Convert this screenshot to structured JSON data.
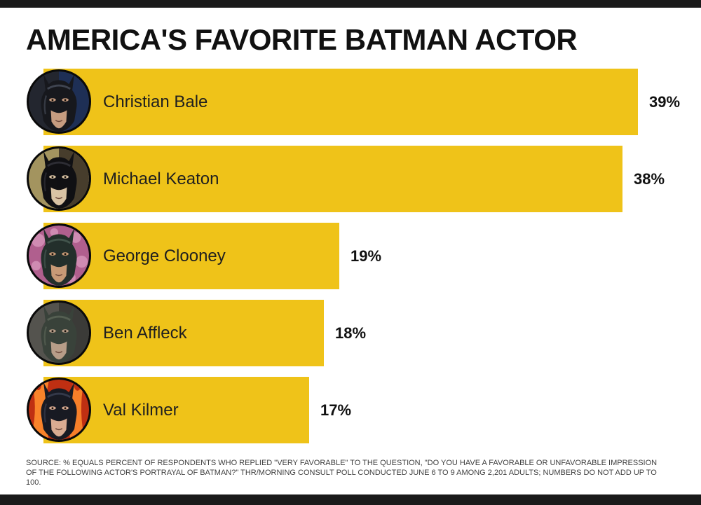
{
  "title": "AMERICA'S FAVORITE BATMAN ACTOR",
  "source_note": "SOURCE: % EQUALS PERCENT OF RESPONDENTS WHO REPLIED \"VERY FAVORABLE\" TO THE QUESTION, \"DO YOU HAVE A FAVORABLE OR UNFAVORABLE IMPRESSION OF THE FOLLOWING ACTOR'S PORTRAYAL OF BATMAN?\" THR/MORNING CONSULT POLL CONDUCTED JUNE 6 TO 9 AMONG 2,201 ADULTS; NUMBERS DO NOT ADD UP TO 100.",
  "colors": {
    "background": "#FFFFFF",
    "frame_bars": "#1A1A1A",
    "bar_fill": "#EFC319",
    "title_text": "#111111",
    "name_text": "#1F1F1F",
    "value_text": "#111111",
    "source_text": "#3F3F3F",
    "avatar_ring": "#0A0A0A"
  },
  "chart_data": {
    "type": "bar",
    "orientation": "horizontal",
    "title": "AMERICA'S FAVORITE BATMAN ACTOR",
    "unit": "%",
    "categories": [
      "Christian Bale",
      "Michael Keaton",
      "George Clooney",
      "Ben Affleck",
      "Val Kilmer"
    ],
    "values": [
      39,
      38,
      19,
      18,
      17
    ],
    "value_labels": [
      "39%",
      "38%",
      "19%",
      "18%",
      "17%"
    ],
    "xlim": [
      0,
      42
    ],
    "grid": false,
    "legend": false,
    "bar_color": "#EFC319",
    "avatars": [
      {
        "actor": "Christian Bale",
        "icon": "batman-bale-avatar",
        "style": "two-tone",
        "bg1": "#23262F",
        "bg2": "#1E2F55",
        "accent": "#31456E",
        "cowl": "#17181D",
        "cowl_hi": "#4A505E",
        "skin": "#C69C80"
      },
      {
        "actor": "Michael Keaton",
        "icon": "batman-keaton-avatar",
        "style": "two-tone",
        "bg1": "#A3945F",
        "bg2": "#473D2C",
        "accent": "#C3B684",
        "cowl": "#101013",
        "cowl_hi": "#35353D",
        "skin": "#D9C3A4"
      },
      {
        "actor": "George Clooney",
        "icon": "batman-clooney-avatar",
        "style": "bokeh",
        "bg1": "#B05F8E",
        "bg2": "#7D3F63",
        "accent": "#E9AED0",
        "cowl": "#232F2B",
        "cowl_hi": "#4A5E55",
        "skin": "#C79A76"
      },
      {
        "actor": "Ben Affleck",
        "icon": "batman-affleck-avatar",
        "style": "two-tone",
        "bg1": "#54534E",
        "bg2": "#3B3B38",
        "accent": "#66655F",
        "cowl": "#39423A",
        "cowl_hi": "#5D6759",
        "skin": "#B79D88"
      },
      {
        "actor": "Val Kilmer",
        "icon": "batman-kilmer-avatar",
        "style": "flames",
        "bg1": "#BF2F12",
        "bg2": "#D44E15",
        "accent": "#FF8D2E",
        "cowl": "#181A23",
        "cowl_hi": "#3C4154",
        "skin": "#D9AB92"
      }
    ]
  }
}
